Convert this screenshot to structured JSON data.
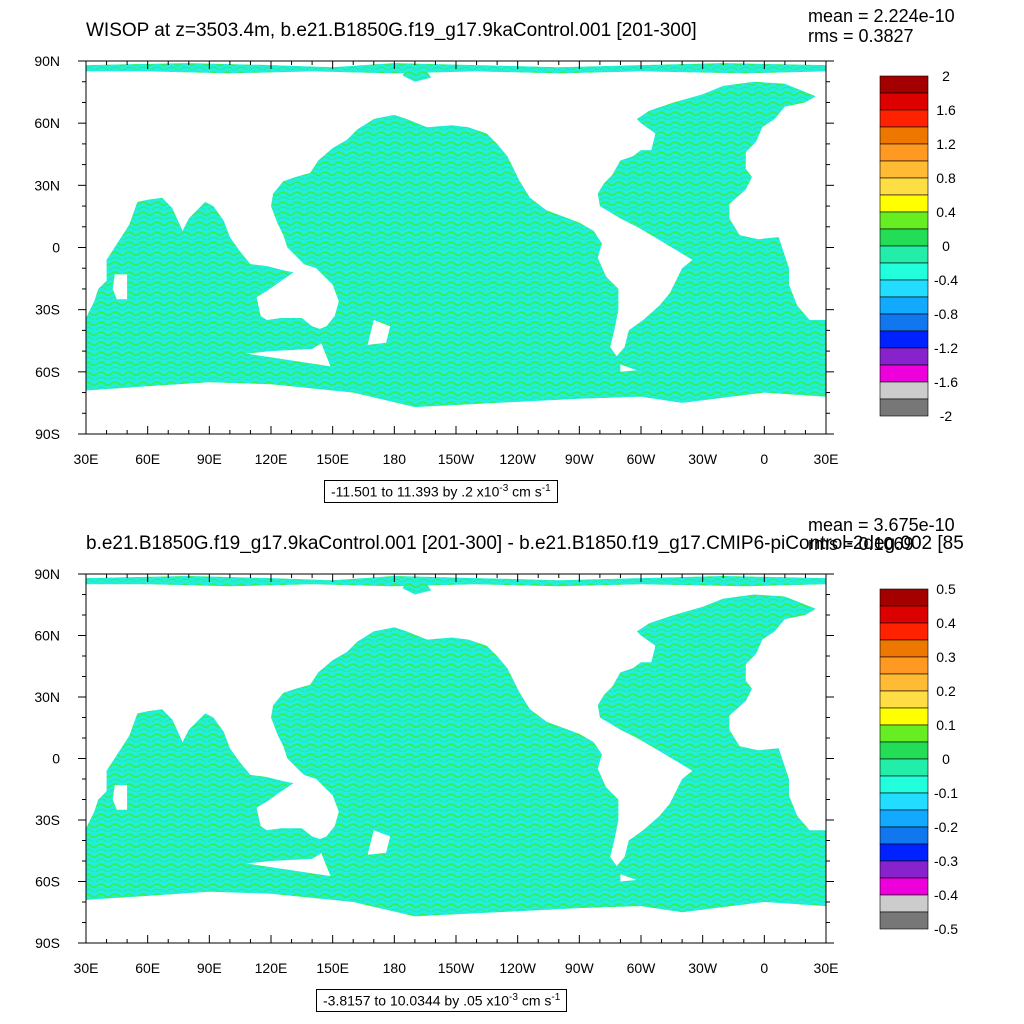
{
  "chart_data": [
    {
      "type": "heatmap",
      "title": "WISOP at z=3503.4m, b.e21.B1850G.f19_g17.9kaControl.001 [201-300]",
      "stats": {
        "mean": "mean = 2.224e-10",
        "rms": "rms = 0.3827"
      },
      "x_tick_labels": [
        "30E",
        "60E",
        "90E",
        "120E",
        "150E",
        "180",
        "150W",
        "120W",
        "90W",
        "60W",
        "30W",
        "0",
        "30E"
      ],
      "y_tick_labels": [
        "90N",
        "60N",
        "30N",
        "0",
        "30S",
        "60S",
        "90S"
      ],
      "xlim": [
        30,
        390
      ],
      "ylim": [
        -90,
        90
      ],
      "colorbar": {
        "min": -2,
        "max": 2,
        "labels": [
          "2",
          "1.6",
          "1.2",
          "0.8",
          "0.4",
          "0",
          "-0.4",
          "-0.8",
          "-1.2",
          "-1.6",
          "-2"
        ],
        "colors": [
          "#a50000",
          "#dd0000",
          "#ff2200",
          "#ee7700",
          "#ff9922",
          "#ffbb33",
          "#ffdd44",
          "#ffff00",
          "#66ee22",
          "#22dd55",
          "#22eeaa",
          "#22ffdd",
          "#22ddff",
          "#11aaff",
          "#1177ee",
          "#0022ff",
          "#8822cc",
          "#ee00dd",
          "#cccccc",
          "#777777"
        ]
      },
      "caption": {
        "range": "-11.501 to 11.393 by .2 x10",
        "exp": "-3",
        "unit": " cm s",
        "unit_exp": "-1"
      }
    },
    {
      "type": "heatmap",
      "title": "b.e21.B1850G.f19_g17.9kaControl.001 [201-300] - b.e21.B1850.f19_g17.CMIP6-piControl-2deg.002 [85",
      "stats": {
        "mean": "mean = 3.675e-10",
        "rms": "rms = 0.1069"
      },
      "x_tick_labels": [
        "30E",
        "60E",
        "90E",
        "120E",
        "150E",
        "180",
        "150W",
        "120W",
        "90W",
        "60W",
        "30W",
        "0",
        "30E"
      ],
      "y_tick_labels": [
        "90N",
        "60N",
        "30N",
        "0",
        "30S",
        "60S",
        "90S"
      ],
      "xlim": [
        30,
        390
      ],
      "ylim": [
        -90,
        90
      ],
      "colorbar": {
        "min": -0.5,
        "max": 0.5,
        "labels": [
          "0.5",
          "0.4",
          "0.3",
          "0.2",
          "0.1",
          "0",
          "-0.1",
          "-0.2",
          "-0.3",
          "-0.4",
          "-0.5"
        ],
        "colors": [
          "#a50000",
          "#dd0000",
          "#ff2200",
          "#ee7700",
          "#ff9922",
          "#ffbb33",
          "#ffdd44",
          "#ffff00",
          "#66ee22",
          "#22dd55",
          "#22eeaa",
          "#22ffdd",
          "#22ddff",
          "#11aaff",
          "#1177ee",
          "#0022ff",
          "#8822cc",
          "#ee00dd",
          "#cccccc",
          "#777777"
        ]
      },
      "caption": {
        "range": "-3.8157 to 10.0344 by .05 x10",
        "exp": "-3",
        "unit": " cm s",
        "unit_exp": "-1"
      }
    }
  ],
  "map_style": {
    "ocean_primary": "#22eedd",
    "ocean_secondary": "#33ee55",
    "land": "#ffffff"
  }
}
